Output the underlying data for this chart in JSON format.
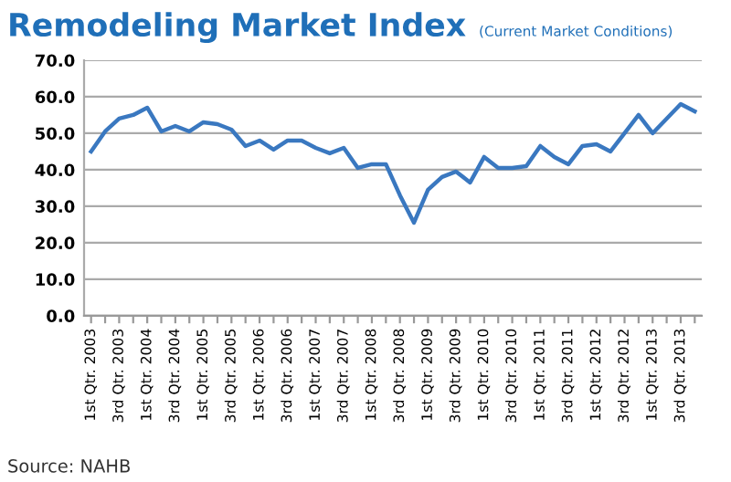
{
  "chart_data": {
    "type": "line",
    "title": "Remodeling Market Index",
    "subtitle": "(Current Market Conditions)",
    "categories": [
      "1st Qtr. 2003",
      null,
      "3rd Qtr. 2003",
      null,
      "1st Qtr. 2004",
      null,
      "3rd Qtr. 2004",
      null,
      "1st Qtr. 2005",
      null,
      "3rd Qtr. 2005",
      null,
      "1st Qtr. 2006",
      null,
      "3rd Qtr. 2006",
      null,
      "1st Qtr. 2007",
      null,
      "3rd Qtr. 2007",
      null,
      "1st Qtr. 2008",
      null,
      "3rd Qtr. 2008",
      null,
      "1st Qtr. 2009",
      null,
      "3rd Qtr. 2009",
      null,
      "1st Qtr. 2010",
      null,
      "3rd Qtr. 2010",
      null,
      "1st Qtr. 2011",
      null,
      "3rd Qtr. 2011",
      null,
      "1st Qtr. 2012",
      null,
      "3rd Qtr. 2012",
      null,
      "1st Qtr. 2013",
      null,
      "3rd Qtr. 2013",
      null
    ],
    "series": [
      {
        "color": "#3a78c0",
        "values": [
          45,
          50.5,
          54,
          55,
          57,
          50.5,
          52,
          50.5,
          53,
          52.5,
          51,
          46.5,
          48,
          45.5,
          48,
          48,
          46,
          44.5,
          46,
          40.5,
          41.5,
          41.5,
          33,
          25.5,
          34.5,
          38,
          39.5,
          36.5,
          43.5,
          40.5,
          40.5,
          41,
          46.5,
          43.5,
          41.5,
          46.5,
          47,
          45,
          50,
          55,
          50,
          54,
          58,
          56
        ]
      }
    ],
    "ylim": [
      0,
      70
    ],
    "yticks": [
      {
        "value": 0,
        "label": "0.0"
      },
      {
        "value": 10,
        "label": "10.0"
      },
      {
        "value": 20,
        "label": "20.0"
      },
      {
        "value": 30,
        "label": "30.0"
      },
      {
        "value": 40,
        "label": "40.0"
      },
      {
        "value": 50,
        "label": "50.0"
      },
      {
        "value": 60,
        "label": "60.0"
      },
      {
        "value": 70,
        "label": "70.0"
      }
    ],
    "grid": "y",
    "marker": "none",
    "line_style": "solid",
    "annotations": [
      "Source: NAHB"
    ]
  }
}
